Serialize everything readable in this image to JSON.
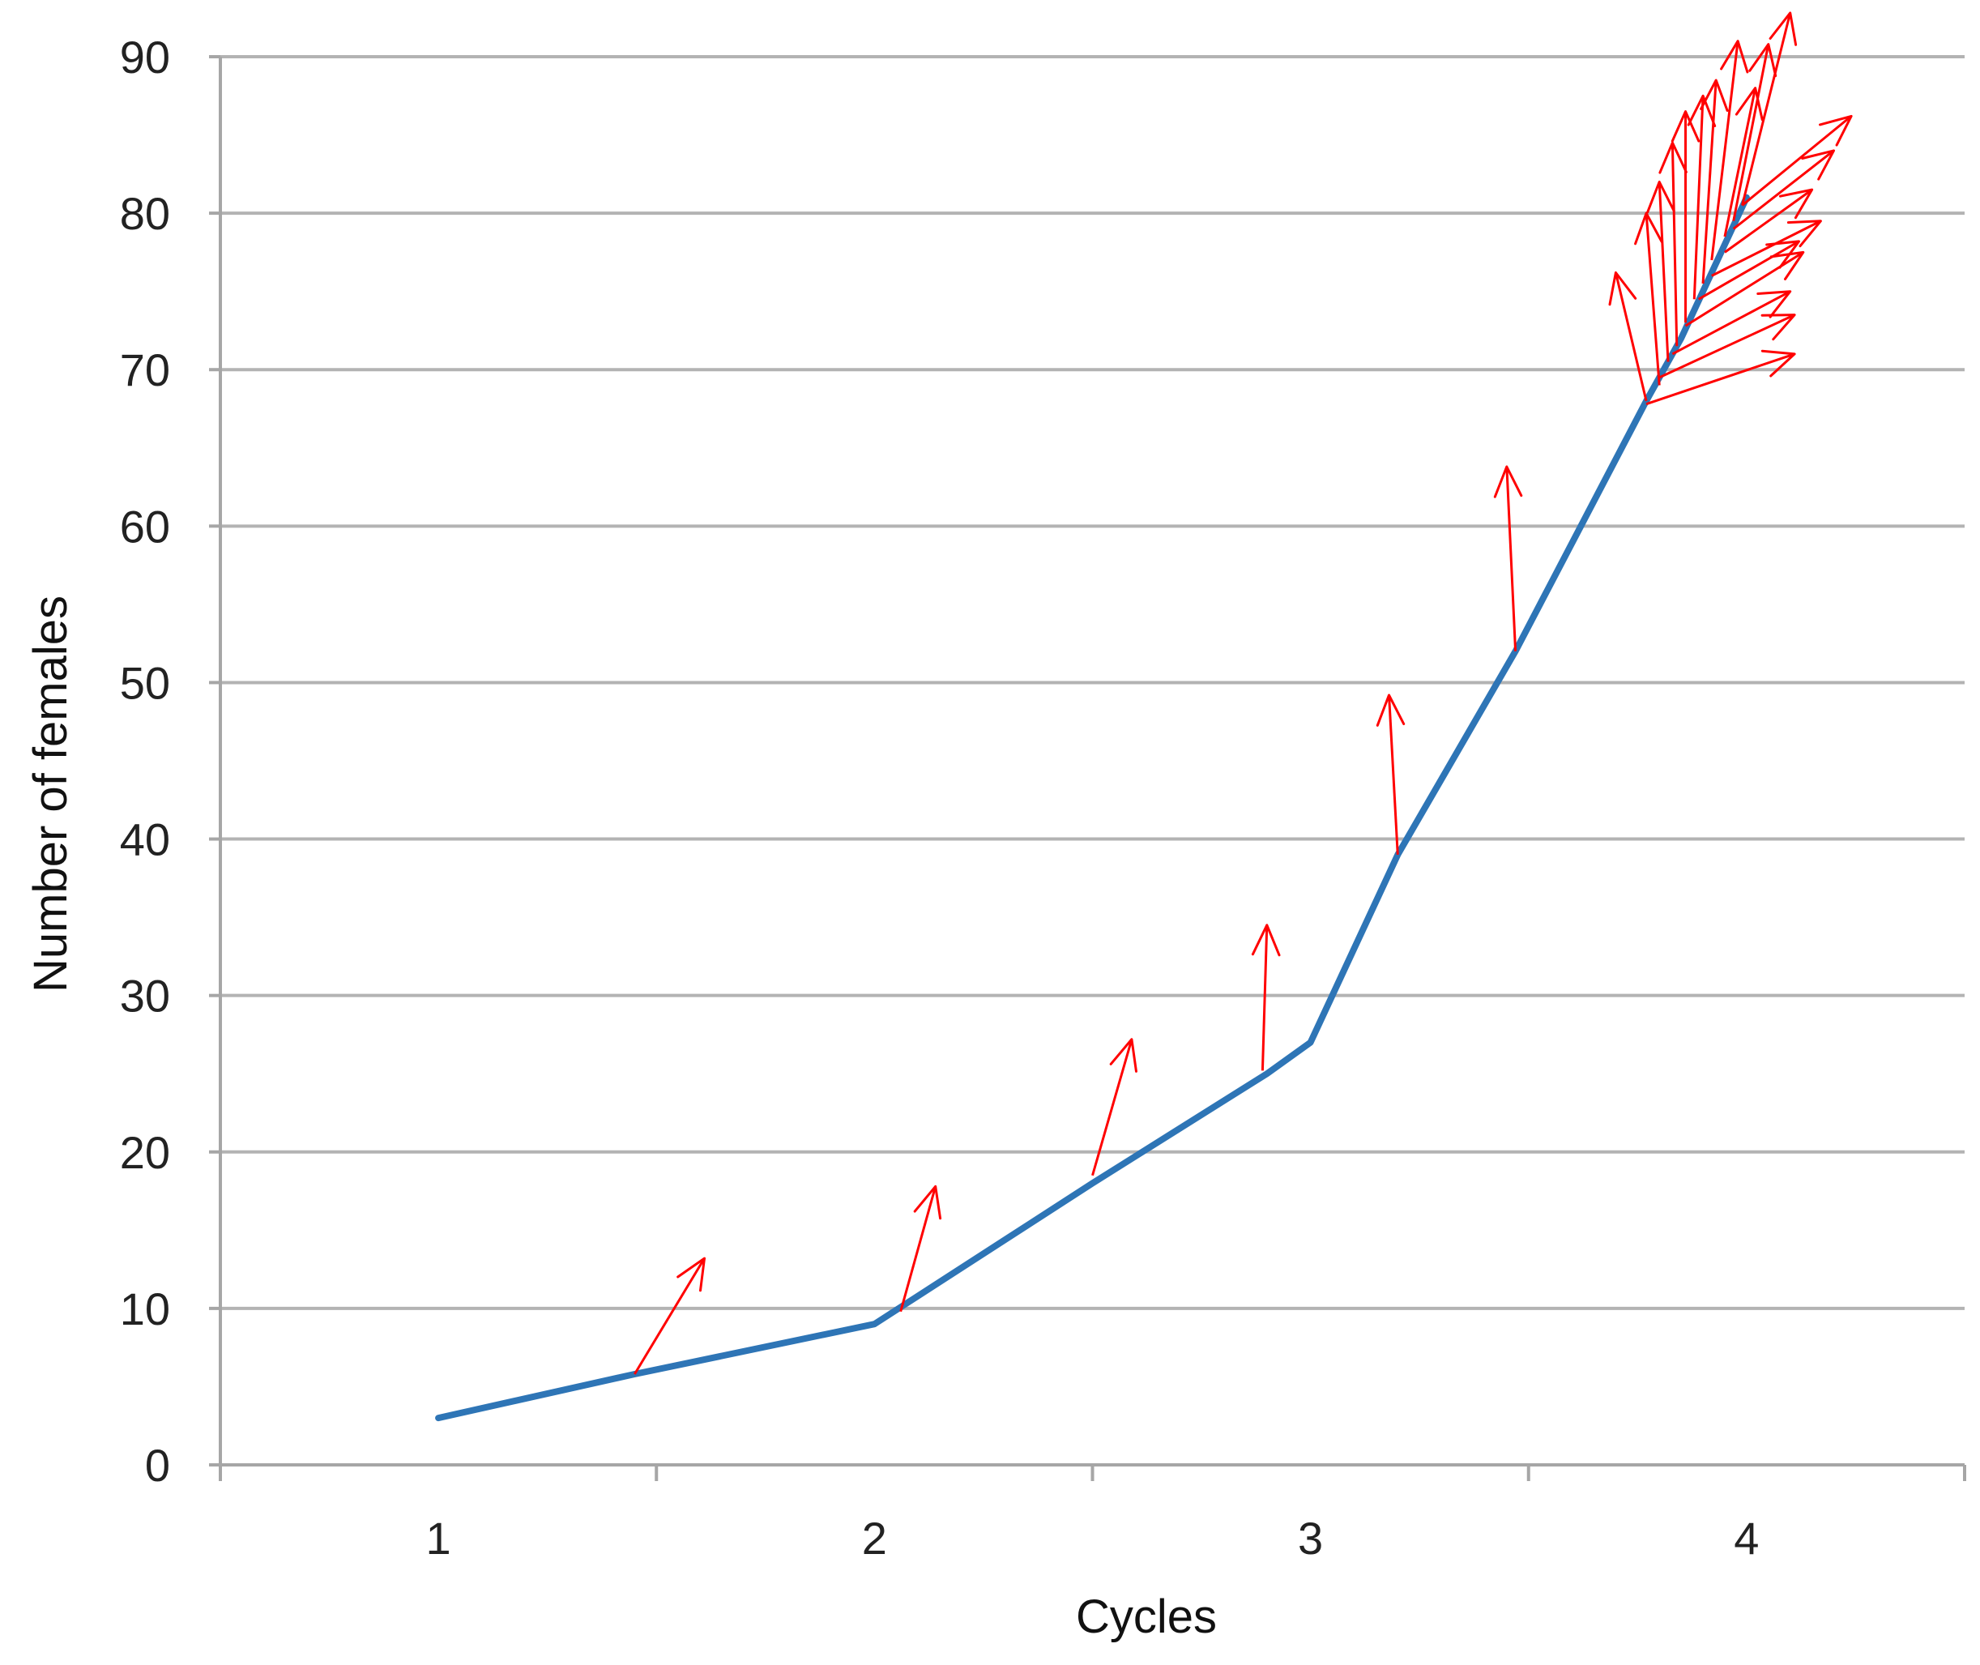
{
  "chart_data": {
    "type": "line",
    "title": "",
    "xlabel": "Cycles",
    "ylabel": "Number of females",
    "x_ticks": [
      "1",
      "2",
      "3",
      "4"
    ],
    "y_ticks": [
      "0",
      "10",
      "20",
      "30",
      "40",
      "50",
      "60",
      "70",
      "80",
      "90"
    ],
    "xlim": [
      0.5,
      4.5
    ],
    "ylim": [
      0,
      90
    ],
    "grid": true,
    "legend": "none",
    "series": [
      {
        "color": "#2e75b6",
        "points": [
          {
            "x": 1.0,
            "y": 3
          },
          {
            "x": 1.45,
            "y": 5.8
          },
          {
            "x": 2.0,
            "y": 9
          },
          {
            "x": 2.5,
            "y": 18
          },
          {
            "x": 2.9,
            "y": 25
          },
          {
            "x": 3.0,
            "y": 27
          },
          {
            "x": 3.2,
            "y": 39
          },
          {
            "x": 3.47,
            "y": 52
          },
          {
            "x": 3.77,
            "y": 68
          },
          {
            "x": 3.85,
            "y": 72
          },
          {
            "x": 4.0,
            "y": 81
          }
        ]
      }
    ],
    "arrows": {
      "color": "#ff0000",
      "items": [
        {
          "from": [
            1.45,
            5.8
          ],
          "to": [
            1.61,
            13.2
          ]
        },
        {
          "from": [
            2.06,
            9.8
          ],
          "to": [
            2.14,
            17.8
          ]
        },
        {
          "from": [
            2.5,
            18.5
          ],
          "to": [
            2.59,
            27.2
          ]
        },
        {
          "from": [
            2.89,
            25.2
          ],
          "to": [
            2.9,
            34.5
          ]
        },
        {
          "from": [
            3.2,
            39.0
          ],
          "to": [
            3.18,
            49.2
          ]
        },
        {
          "from": [
            3.47,
            52.0
          ],
          "to": [
            3.45,
            63.8
          ]
        },
        {
          "from": [
            3.77,
            68.0
          ],
          "to": [
            3.7,
            76.2
          ]
        },
        {
          "from": [
            3.8,
            69.0
          ],
          "to": [
            3.77,
            80.0
          ]
        },
        {
          "from": [
            3.82,
            70.5
          ],
          "to": [
            3.8,
            82.0
          ]
        },
        {
          "from": [
            3.84,
            71.5
          ],
          "to": [
            3.83,
            84.5
          ]
        },
        {
          "from": [
            3.86,
            73.0
          ],
          "to": [
            3.86,
            86.5
          ]
        },
        {
          "from": [
            3.88,
            74.5
          ],
          "to": [
            3.9,
            87.5
          ]
        },
        {
          "from": [
            3.9,
            75.5
          ],
          "to": [
            3.93,
            88.5
          ]
        },
        {
          "from": [
            3.92,
            77.0
          ],
          "to": [
            3.98,
            91.0
          ]
        },
        {
          "from": [
            3.95,
            78.5
          ],
          "to": [
            4.02,
            88.0
          ]
        },
        {
          "from": [
            3.97,
            79.5
          ],
          "to": [
            4.05,
            90.8
          ]
        },
        {
          "from": [
            3.99,
            80.5
          ],
          "to": [
            4.1,
            92.8
          ]
        },
        {
          "from": [
            3.77,
            67.8
          ],
          "to": [
            4.11,
            71.0
          ]
        },
        {
          "from": [
            3.8,
            69.5
          ],
          "to": [
            4.11,
            73.5
          ]
        },
        {
          "from": [
            3.83,
            71.0
          ],
          "to": [
            4.1,
            75.0
          ]
        },
        {
          "from": [
            3.86,
            72.8
          ],
          "to": [
            4.13,
            77.5
          ]
        },
        {
          "from": [
            3.89,
            74.5
          ],
          "to": [
            4.12,
            78.2
          ]
        },
        {
          "from": [
            3.92,
            76.0
          ],
          "to": [
            4.17,
            79.5
          ]
        },
        {
          "from": [
            3.95,
            77.5
          ],
          "to": [
            4.15,
            81.5
          ]
        },
        {
          "from": [
            3.97,
            79.0
          ],
          "to": [
            4.2,
            84.0
          ]
        },
        {
          "from": [
            3.99,
            80.5
          ],
          "to": [
            4.24,
            86.2
          ]
        }
      ]
    }
  }
}
